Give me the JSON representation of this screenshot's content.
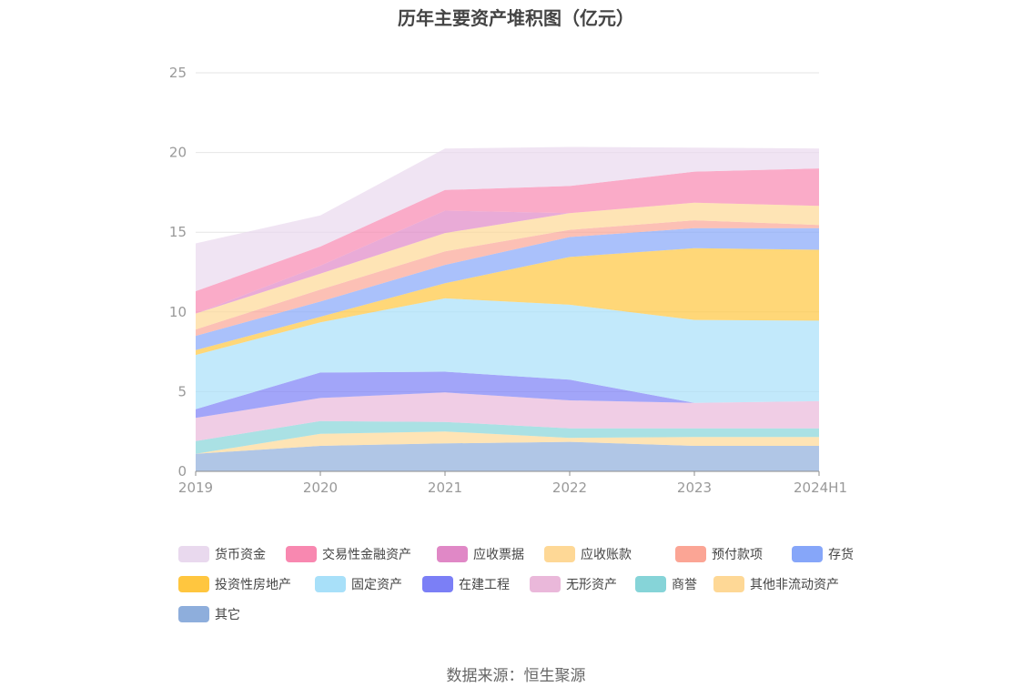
{
  "chart_data": {
    "type": "area",
    "stacked": true,
    "title": "历年主要资产堆积图（亿元）",
    "categories": [
      "2019",
      "2020",
      "2021",
      "2022",
      "2023",
      "2024H1"
    ],
    "ylim": [
      0,
      25
    ],
    "yticks": [
      0,
      5,
      10,
      15,
      20,
      25
    ],
    "grid": true,
    "legend_position": "bottom",
    "series": [
      {
        "name": "其它",
        "color": "#8eaedc",
        "values": [
          1.1,
          1.6,
          1.75,
          1.85,
          1.6,
          1.6
        ]
      },
      {
        "name": "其他非流动资产",
        "color": "#fed896",
        "values": [
          0.0,
          0.75,
          0.75,
          0.25,
          0.55,
          0.55
        ]
      },
      {
        "name": "商誉",
        "color": "#86d4d8",
        "values": [
          0.8,
          0.8,
          0.6,
          0.6,
          0.55,
          0.55
        ]
      },
      {
        "name": "无形资产",
        "color": "#eab8da",
        "values": [
          1.45,
          1.45,
          1.85,
          1.75,
          1.6,
          1.7
        ]
      },
      {
        "name": "在建工程",
        "color": "#7b7ff6",
        "values": [
          0.55,
          1.6,
          1.3,
          1.3,
          0.0,
          0.0
        ]
      },
      {
        "name": "固定资产",
        "color": "#a8e0f9",
        "values": [
          3.4,
          3.15,
          4.6,
          4.7,
          5.2,
          5.05
        ]
      },
      {
        "name": "投资性房地产",
        "color": "#ffc63f",
        "values": [
          0.3,
          0.35,
          0.95,
          3.0,
          4.5,
          4.45
        ]
      },
      {
        "name": "存货",
        "color": "#86a6f9",
        "values": [
          0.9,
          0.95,
          1.15,
          1.25,
          1.25,
          1.35
        ]
      },
      {
        "name": "预付款项",
        "color": "#fba595",
        "values": [
          0.4,
          0.75,
          0.85,
          0.45,
          0.5,
          0.2
        ]
      },
      {
        "name": "应收账款",
        "color": "#fed896",
        "values": [
          1.0,
          1.0,
          1.15,
          1.05,
          1.1,
          1.2
        ]
      },
      {
        "name": "应收票据",
        "color": "#e088c6",
        "values": [
          0.0,
          0.5,
          1.4,
          0.0,
          0.0,
          0.0
        ]
      },
      {
        "name": "交易性金融资产",
        "color": "#f888b0",
        "values": [
          1.4,
          1.2,
          1.3,
          1.7,
          1.95,
          2.35
        ]
      },
      {
        "name": "货币资金",
        "color": "#e9d9ee",
        "values": [
          3.0,
          1.95,
          2.6,
          2.45,
          1.5,
          1.25
        ]
      }
    ]
  },
  "legend_order": [
    "货币资金",
    "交易性金融资产",
    "应收票据",
    "应收账款",
    "预付款项",
    "存货",
    "投资性房地产",
    "固定资产",
    "在建工程",
    "无形资产",
    "商誉",
    "其他非流动资产",
    "其它"
  ],
  "source": "数据来源：恒生聚源"
}
